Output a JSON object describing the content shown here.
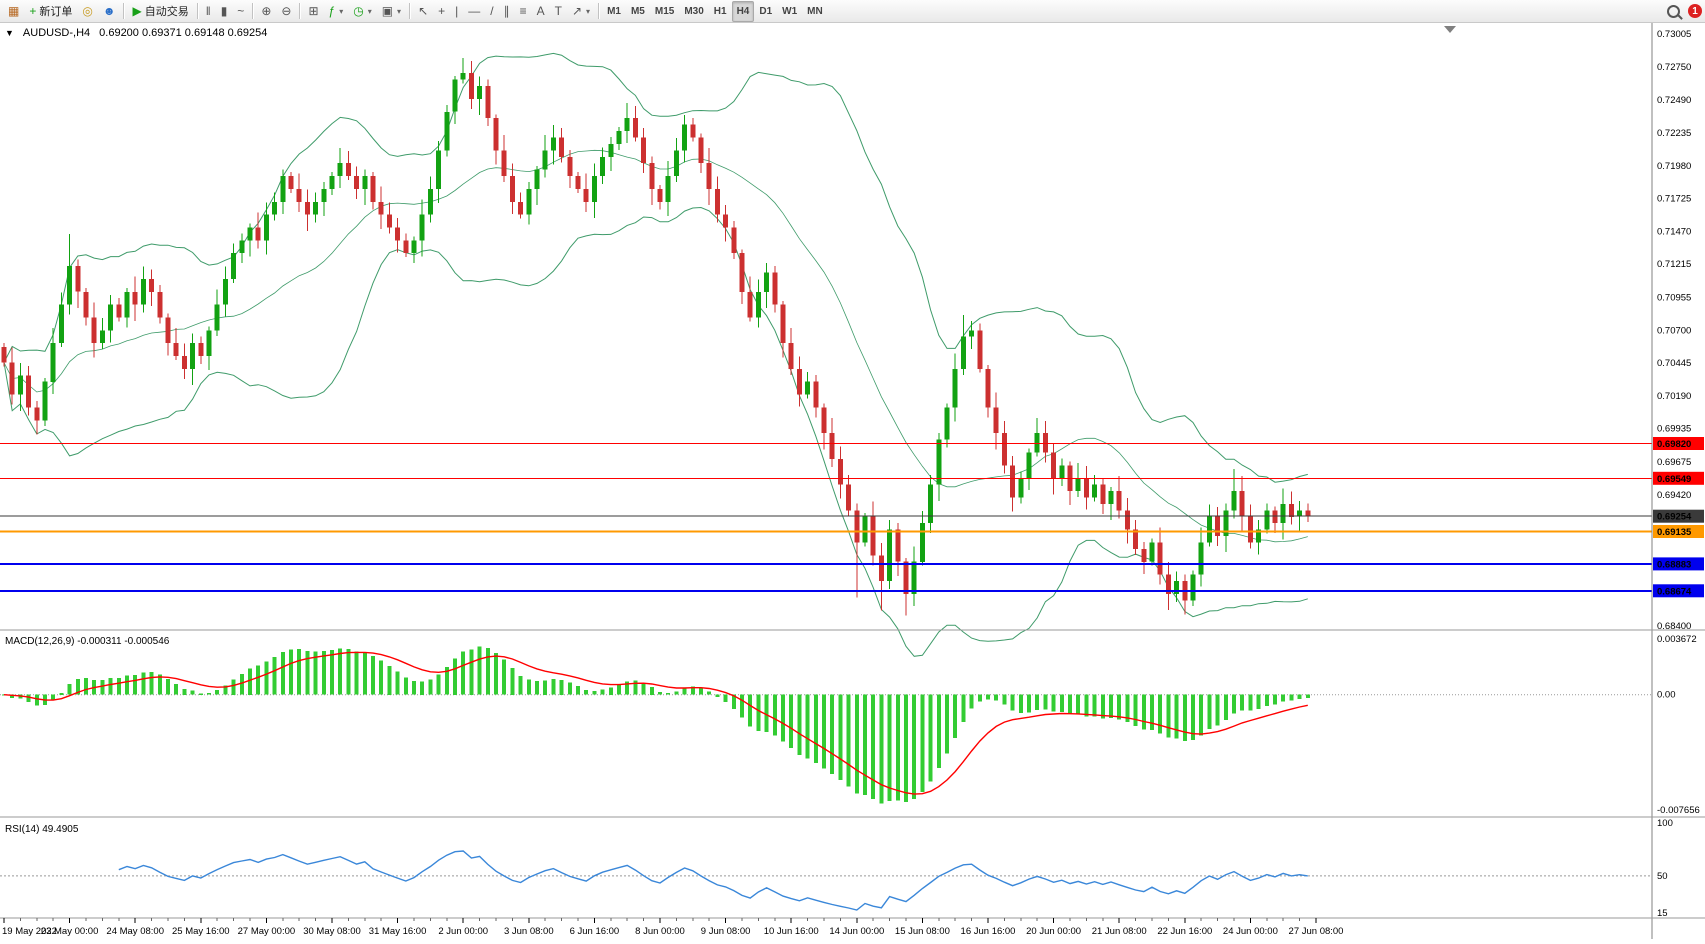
{
  "toolbar": {
    "groups": [
      {
        "name": "files",
        "items": [
          {
            "name": "app-chart-icon-button",
            "glyph": "▦",
            "glyph_color": "#b5651d"
          },
          {
            "name": "new-order-button",
            "glyph": "+",
            "glyph_color": "#18a018",
            "label": "新订单"
          },
          {
            "name": "compass-button",
            "glyph": "◎",
            "glyph_color": "#c79a1e"
          },
          {
            "name": "community-button",
            "glyph": "☻",
            "glyph_color": "#2a6fc9"
          }
        ]
      },
      {
        "name": "autotrading",
        "items": [
          {
            "name": "autotrading-button",
            "glyph": "▶",
            "glyph_color": "#18a018",
            "label": "自动交易"
          }
        ]
      },
      {
        "name": "chart-type",
        "items": [
          {
            "name": "bar-chart-button",
            "glyph": "‖"
          },
          {
            "name": "candlestick-chart-button",
            "glyph": "▮"
          },
          {
            "name": "line-chart-button",
            "glyph": "~"
          }
        ]
      },
      {
        "name": "zoom",
        "items": [
          {
            "name": "zoom-in-button",
            "glyph": "⊕"
          },
          {
            "name": "zoom-out-button",
            "glyph": "⊖"
          }
        ]
      },
      {
        "name": "windows",
        "items": [
          {
            "name": "tile-windows-button",
            "glyph": "⊞"
          },
          {
            "name": "indicators-button",
            "glyph": "ƒ",
            "dropdown": true,
            "glyph_color": "#18a018"
          },
          {
            "name": "periods-button",
            "glyph": "◷",
            "dropdown": true,
            "glyph_color": "#18a018"
          },
          {
            "name": "templates-button",
            "glyph": "▣",
            "dropdown": true
          }
        ]
      },
      {
        "name": "tools",
        "items": [
          {
            "name": "cursor-button",
            "glyph": "↖"
          },
          {
            "name": "crosshair-button",
            "glyph": "+"
          },
          {
            "name": "vertical-line-button",
            "glyph": "|"
          },
          {
            "name": "horizontal-line-button",
            "glyph": "—"
          },
          {
            "name": "trendline-button",
            "glyph": "/"
          },
          {
            "name": "channel-button",
            "glyph": "∥"
          },
          {
            "name": "fibonacci-button",
            "glyph": "≡"
          },
          {
            "name": "text-button",
            "glyph": "A"
          },
          {
            "name": "label-button",
            "glyph": "T"
          },
          {
            "name": "arrows-button",
            "glyph": "↗",
            "dropdown": true
          }
        ]
      },
      {
        "name": "timeframes",
        "items": [
          {
            "name": "tf-m1-button",
            "label": "M1"
          },
          {
            "name": "tf-m5-button",
            "label": "M5"
          },
          {
            "name": "tf-m15-button",
            "label": "M15"
          },
          {
            "name": "tf-m30-button",
            "label": "M30"
          },
          {
            "name": "tf-h1-button",
            "label": "H1"
          },
          {
            "name": "tf-h4-button",
            "label": "H4",
            "active": true
          },
          {
            "name": "tf-d1-button",
            "label": "D1"
          },
          {
            "name": "tf-w1-button",
            "label": "W1"
          },
          {
            "name": "tf-mn-button",
            "label": "MN"
          }
        ]
      }
    ],
    "right": [
      {
        "name": "search-button"
      },
      {
        "name": "notification-badge",
        "label": "1"
      }
    ]
  },
  "symbol_label": {
    "dropdown_glyph": "▼",
    "title": "AUDUSD-,H4",
    "ohlc": "0.69200 0.69371 0.69148 0.69254"
  },
  "chart_data": {
    "type": "candlestick",
    "symbol": "AUDUSD-",
    "timeframe": "H4",
    "colors": {
      "candle_up": "#12a212",
      "candle_down": "#cc3030",
      "bollinger": "#3f9b6a",
      "macd_hist": "#33cc33",
      "macd_signal": "#ff0000",
      "rsi_line": "#3a87d9"
    },
    "price_axis_range": {
      "top": 0.73005,
      "bottom": 0.684
    },
    "price_axis_labels": [
      "0.73005",
      "0.72750",
      "0.72490",
      "0.72235",
      "0.71980",
      "0.71725",
      "0.71470",
      "0.71215",
      "0.70955",
      "0.70700",
      "0.70445",
      "0.70190",
      "0.69935",
      "0.69675",
      "0.69420",
      "0.68400"
    ],
    "closes": [
      0.7045,
      0.702,
      0.7035,
      0.701,
      0.7,
      0.703,
      0.706,
      0.709,
      0.712,
      0.71,
      0.708,
      0.706,
      0.707,
      0.709,
      0.708,
      0.71,
      0.709,
      0.711,
      0.71,
      0.708,
      0.706,
      0.705,
      0.704,
      0.706,
      0.705,
      0.707,
      0.709,
      0.711,
      0.713,
      0.714,
      0.715,
      0.714,
      0.716,
      0.717,
      0.719,
      0.718,
      0.717,
      0.716,
      0.717,
      0.718,
      0.719,
      0.72,
      0.719,
      0.718,
      0.719,
      0.717,
      0.716,
      0.715,
      0.714,
      0.713,
      0.714,
      0.716,
      0.718,
      0.721,
      0.724,
      0.7265,
      0.727,
      0.725,
      0.726,
      0.7235,
      0.721,
      0.719,
      0.717,
      0.716,
      0.718,
      0.7195,
      0.721,
      0.722,
      0.7205,
      0.719,
      0.718,
      0.717,
      0.719,
      0.7205,
      0.7215,
      0.7225,
      0.7235,
      0.722,
      0.72,
      0.718,
      0.717,
      0.719,
      0.721,
      0.723,
      0.722,
      0.72,
      0.718,
      0.716,
      0.715,
      0.713,
      0.71,
      0.708,
      0.71,
      0.7115,
      0.709,
      0.706,
      0.704,
      0.702,
      0.703,
      0.701,
      0.699,
      0.697,
      0.695,
      0.693,
      0.6905,
      0.6925,
      0.6895,
      0.6875,
      0.6915,
      0.689,
      0.6865,
      0.689,
      0.692,
      0.695,
      0.6985,
      0.701,
      0.704,
      0.7065,
      0.707,
      0.704,
      0.701,
      0.699,
      0.6965,
      0.694,
      0.6955,
      0.6975,
      0.699,
      0.6975,
      0.6955,
      0.6965,
      0.6945,
      0.6955,
      0.694,
      0.695,
      0.6935,
      0.6945,
      0.693,
      0.6915,
      0.69,
      0.689,
      0.6905,
      0.688,
      0.6865,
      0.6875,
      0.686,
      0.688,
      0.6905,
      0.6925,
      0.691,
      0.693,
      0.6945,
      0.6925,
      0.6905,
      0.6915,
      0.693,
      0.692,
      0.6935,
      0.6925,
      0.693,
      0.69254
    ],
    "spikes": [
      {
        "i": 8,
        "high": 0.7145
      },
      {
        "i": 56,
        "high": 0.728
      },
      {
        "i": 104,
        "low": 0.6862
      },
      {
        "i": 107,
        "low": 0.6852
      },
      {
        "i": 110,
        "low": 0.6848
      },
      {
        "i": 117,
        "high": 0.7082
      },
      {
        "i": 144,
        "low": 0.6852
      },
      {
        "i": 150,
        "high": 0.6962
      }
    ],
    "bollinger": {
      "period": 20,
      "deviation": 2
    },
    "level_lines": [
      {
        "price": 0.6982,
        "label": "0.69820",
        "color": "#ff0000",
        "width": 1
      },
      {
        "price": 0.69549,
        "label": "0.69549",
        "color": "#ff0000",
        "width": 1
      },
      {
        "price": 0.69254,
        "label": "0.69254",
        "color": "#3a3a3a",
        "width": 1,
        "current": true
      },
      {
        "price": 0.69135,
        "label": "0.69135",
        "color": "#ff9900",
        "width": 2
      },
      {
        "price": 0.68883,
        "label": "0.68883",
        "color": "#0000ee",
        "width": 2
      },
      {
        "price": 0.68674,
        "label": "0.68674",
        "color": "#0000ee",
        "width": 2
      }
    ],
    "macd": {
      "label": "MACD(12,26,9)",
      "value_main": "-0.000311",
      "value_signal": "-0.000546",
      "fast": 12,
      "slow": 26,
      "signal": 9,
      "axis_max": "0.003672",
      "axis_zero": "0.00",
      "axis_min": "-0.007656"
    },
    "rsi": {
      "label": "RSI(14)",
      "value": "49.4905",
      "period": 14,
      "axis_max": "100",
      "axis_mid": "50",
      "axis_min": "15"
    },
    "time_labels": [
      "19 May 2022",
      "23 May 00:00",
      "24 May 08:00",
      "25 May 16:00",
      "27 May 00:00",
      "30 May 08:00",
      "31 May 16:00",
      "2 Jun 00:00",
      "3 Jun 08:00",
      "6 Jun 16:00",
      "8 Jun 00:00",
      "9 Jun 08:00",
      "10 Jun 16:00",
      "14 Jun 00:00",
      "15 Jun 08:00",
      "16 Jun 16:00",
      "20 Jun 00:00",
      "21 Jun 08:00",
      "22 Jun 16:00",
      "24 Jun 00:00",
      "27 Jun 08:00"
    ]
  }
}
